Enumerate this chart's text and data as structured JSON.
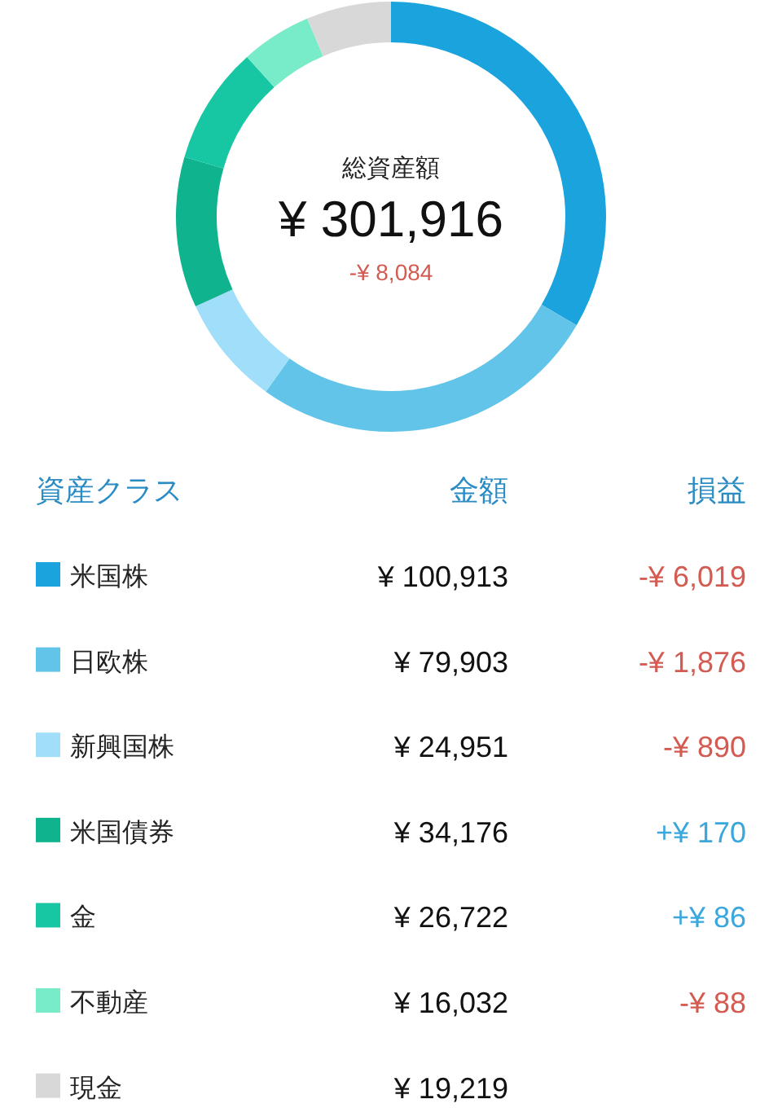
{
  "chart_data": {
    "type": "donut",
    "categories": [
      "米国株",
      "日欧株",
      "新興国株",
      "米国債券",
      "金",
      "不動産",
      "現金"
    ],
    "values": [
      100913,
      79903,
      24951,
      34176,
      26722,
      16032,
      19219
    ],
    "colors": [
      "#1aa3dd",
      "#62c4e8",
      "#a0defa",
      "#0fb38e",
      "#17c6a3",
      "#78ebc8",
      "#d8d8d8"
    ],
    "value_labels": [
      "¥ 100,913",
      "¥ 79,903",
      "¥ 24,951",
      "¥ 34,176",
      "¥ 26,722",
      "¥ 16,032",
      "¥ 19,219"
    ],
    "legend": "bottom",
    "legend_title": "資産クラス",
    "annotations": [
      "総資産額",
      "¥ 301,916",
      "-¥ 8,084",
      "金額",
      "損益",
      "-¥ 6,019",
      "-¥ 1,876",
      "-¥ 890",
      "+¥ 170",
      "+¥ 86",
      "-¥ 88"
    ]
  }
}
